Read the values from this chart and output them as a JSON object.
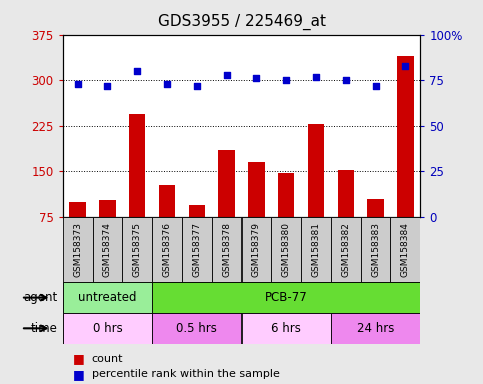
{
  "title": "GDS3955 / 225469_at",
  "samples": [
    "GSM158373",
    "GSM158374",
    "GSM158375",
    "GSM158376",
    "GSM158377",
    "GSM158378",
    "GSM158379",
    "GSM158380",
    "GSM158381",
    "GSM158382",
    "GSM158383",
    "GSM158384"
  ],
  "counts": [
    100,
    103,
    245,
    127,
    95,
    185,
    165,
    148,
    228,
    153,
    105,
    340
  ],
  "percentiles": [
    73,
    72,
    80,
    73,
    72,
    78,
    76,
    75,
    77,
    75,
    72,
    83
  ],
  "bar_color": "#cc0000",
  "dot_color": "#0000cc",
  "ylim_left": [
    75,
    375
  ],
  "yticks_left": [
    75,
    150,
    225,
    300,
    375
  ],
  "ylim_right": [
    0,
    100
  ],
  "yticks_right": [
    0,
    25,
    50,
    75,
    100
  ],
  "ytick_labels_right": [
    "0",
    "25",
    "50",
    "75",
    "100%"
  ],
  "grid_lines": [
    150,
    225,
    300
  ],
  "agent_groups": [
    {
      "label": "untreated",
      "start": 0,
      "end": 3,
      "color": "#99ee99"
    },
    {
      "label": "PCB-77",
      "start": 3,
      "end": 12,
      "color": "#66dd33"
    }
  ],
  "time_groups": [
    {
      "label": "0 hrs",
      "start": 0,
      "end": 3,
      "color": "#ffccff"
    },
    {
      "label": "0.5 hrs",
      "start": 3,
      "end": 6,
      "color": "#ee88ee"
    },
    {
      "label": "6 hrs",
      "start": 6,
      "end": 9,
      "color": "#ffccff"
    },
    {
      "label": "24 hrs",
      "start": 9,
      "end": 12,
      "color": "#ee88ee"
    }
  ],
  "bg_color": "#e8e8e8",
  "plot_bg": "#ffffff",
  "sample_box_color": "#cccccc",
  "title_fontsize": 11,
  "tick_fontsize": 8.5,
  "bar_width": 0.55
}
